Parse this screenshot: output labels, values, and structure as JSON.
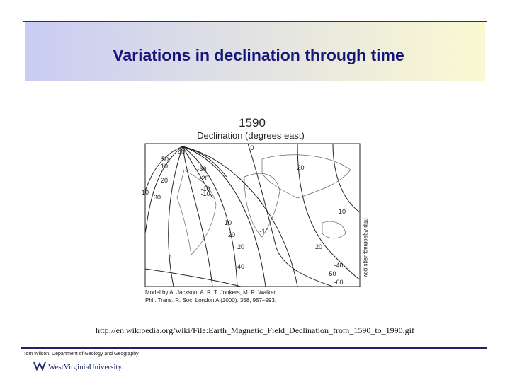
{
  "header": {
    "title": "Variations in declination through time"
  },
  "figure": {
    "year": "1590",
    "subtitle": "Declination (degrees east)",
    "contour_labels": [
      "0",
      "-20",
      "-10",
      "10",
      "20",
      "-10",
      "10",
      "20",
      "30",
      "40",
      "-40",
      "-50",
      "-60",
      "50",
      "40",
      "10",
      "20",
      "-30",
      "-20",
      "-10",
      "10",
      "20",
      "0"
    ],
    "credit_lines": [
      "Model by A. Jackson, A. R. T. Jonkers, M. R. Walker,",
      "Phil. Trans. R. Soc. London A (2000). 358, 957–993."
    ],
    "side_url": "http://geomag.usgs.gov"
  },
  "caption": "http://en.wikipedia.org/wiki/File:Earth_Magnetic_Field_Declination_from_1590_to_1990.gif",
  "footer": {
    "author": "Tom Wilson, Department of Geology and Geography",
    "logo": "WestVirginiaUniversity."
  }
}
